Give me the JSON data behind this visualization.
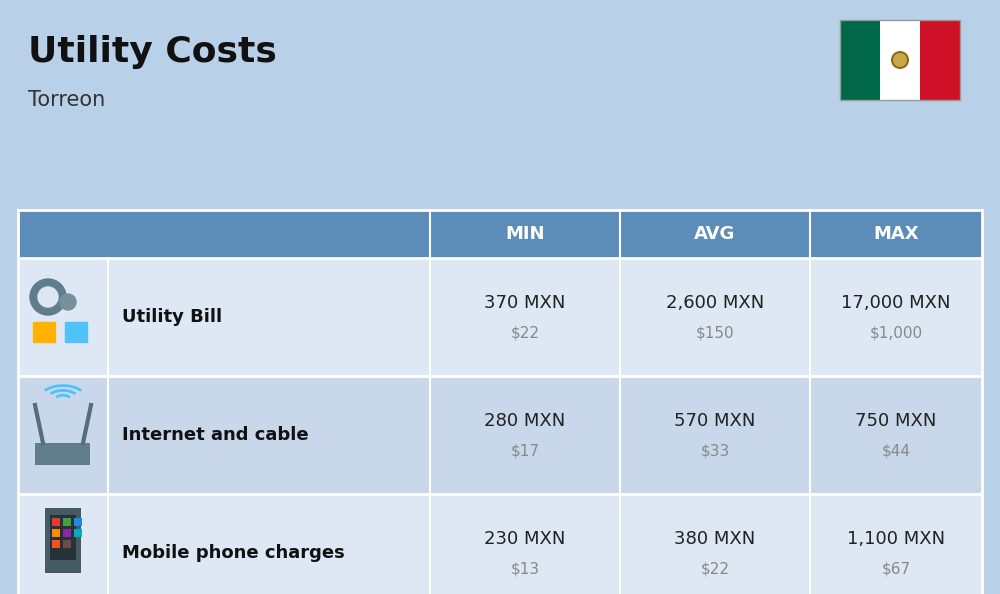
{
  "title": "Utility Costs",
  "subtitle": "Torreon",
  "background_color": "#b8d0e8",
  "header_bg_color": "#5b8db8",
  "header_text_color": "#ffffff",
  "row_bg_color_odd": "#dde8f4",
  "row_bg_color_even": "#c8d8ea",
  "border_color": "#ffffff",
  "col_headers": [
    "MIN",
    "AVG",
    "MAX"
  ],
  "rows": [
    {
      "label": "Utility Bill",
      "min_mxn": "370 MXN",
      "min_usd": "$22",
      "avg_mxn": "2,600 MXN",
      "avg_usd": "$150",
      "max_mxn": "17,000 MXN",
      "max_usd": "$1,000",
      "icon": "utility"
    },
    {
      "label": "Internet and cable",
      "min_mxn": "280 MXN",
      "min_usd": "$17",
      "avg_mxn": "570 MXN",
      "avg_usd": "$33",
      "max_mxn": "750 MXN",
      "max_usd": "$44",
      "icon": "internet"
    },
    {
      "label": "Mobile phone charges",
      "min_mxn": "230 MXN",
      "min_usd": "$13",
      "avg_mxn": "380 MXN",
      "avg_usd": "$22",
      "max_mxn": "1,100 MXN",
      "max_usd": "$67",
      "icon": "mobile"
    }
  ],
  "title_fontsize": 26,
  "subtitle_fontsize": 15,
  "header_fontsize": 13,
  "label_fontsize": 13,
  "value_fontsize": 13,
  "usd_fontsize": 11,
  "usd_color": "#888888",
  "label_color": "#111111",
  "value_color": "#222222",
  "flag_green": "#006847",
  "flag_white": "#ffffff",
  "flag_red": "#ce1126"
}
